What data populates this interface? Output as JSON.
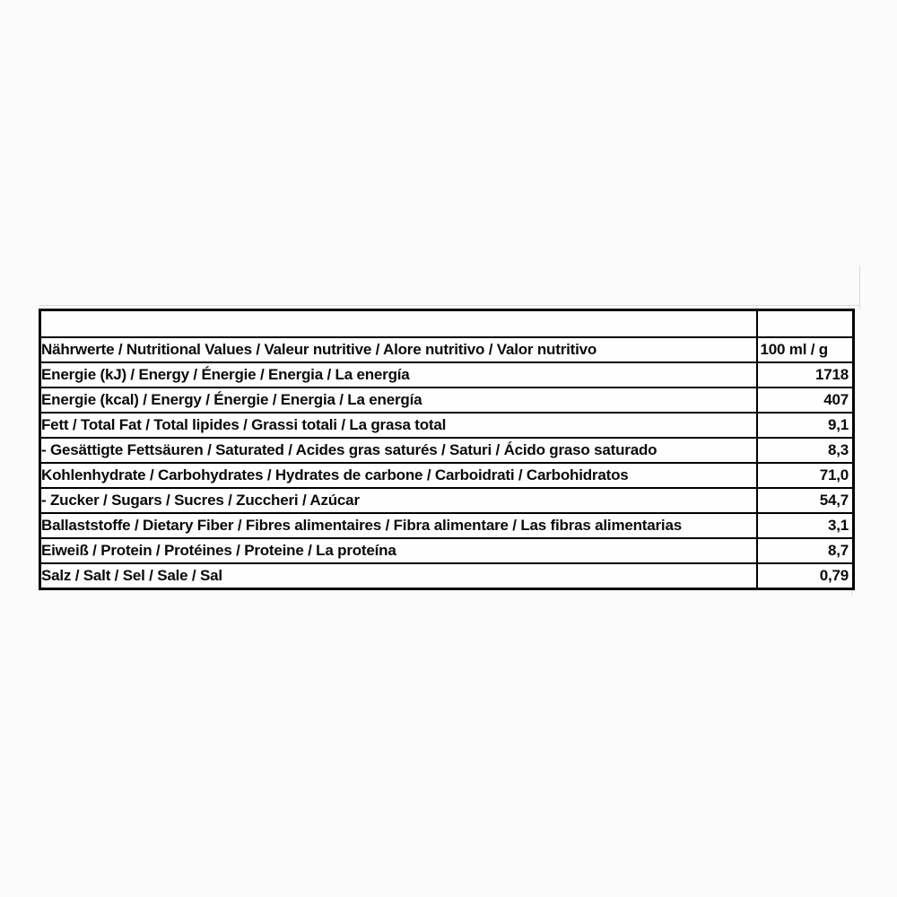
{
  "table": {
    "unit_header": "100 ml / g",
    "rows": [
      {
        "label": "",
        "value": "",
        "value_align": "left"
      },
      {
        "label": "Nährwerte / Nutritional Values / Valeur nutritive / Alore nutritivo / Valor nutritivo",
        "value": "100 ml / g",
        "value_align": "left"
      },
      {
        "label": "Energie (kJ) / Energy / Énergie / Energia / La energía",
        "value": "1718",
        "value_align": "right"
      },
      {
        "label": "Energie (kcal) / Energy / Énergie / Energia / La energía",
        "value": "407",
        "value_align": "right"
      },
      {
        "label": "Fett / Total Fat / Total lipides / Grassi totali / La grasa total",
        "value": "9,1",
        "value_align": "right"
      },
      {
        "label": "- Gesättigte Fettsäuren / Saturated / Acides gras saturés / Saturi / Ácido graso saturado",
        "value": "8,3",
        "value_align": "right"
      },
      {
        "label": "Kohlenhydrate / Carbohydrates / Hydrates de carbone / Carboidrati / Carbohidratos",
        "value": "71,0",
        "value_align": "right"
      },
      {
        "label": "- Zucker / Sugars / Sucres / Zuccheri / Azúcar",
        "value": "54,7",
        "value_align": "right"
      },
      {
        "label": "Ballaststoffe / Dietary Fiber / Fibres alimentaires / Fibra alimentare / Las fibras alimentarias",
        "value": "3,1",
        "value_align": "right"
      },
      {
        "label": "Eiweiß / Protein / Protéines / Proteine / La proteína",
        "value": "8,7",
        "value_align": "right"
      },
      {
        "label": "Salz / Salt / Sel / Sale / Sal",
        "value": "0,79",
        "value_align": "right"
      }
    ]
  },
  "colors": {
    "page_background": "#fafbfa",
    "cell_background": "#fefefe",
    "border": "#000000",
    "ghost_gridline": "#dadddb"
  },
  "chart_data": {
    "type": "table",
    "title": "Nährwerte / Nutritional Values / Valeur nutritive / Alore nutritivo / Valor nutritivo",
    "columns": [
      "Nährwerte / Nutritional Values / Valeur nutritive / Alore nutritivo / Valor nutritivo",
      "100 ml / g"
    ],
    "rows": [
      [
        "Energie (kJ) / Energy / Énergie / Energia / La energía",
        "1718"
      ],
      [
        "Energie (kcal) / Energy / Énergie / Energia / La energía",
        "407"
      ],
      [
        "Fett / Total Fat / Total lipides / Grassi totali / La grasa total",
        "9,1"
      ],
      [
        "- Gesättigte Fettsäuren / Saturated / Acides gras saturés / Saturi / Ácido graso saturado",
        "8,3"
      ],
      [
        "Kohlenhydrate / Carbohydrates / Hydrates de carbone / Carboidrati / Carbohidratos",
        "71,0"
      ],
      [
        "- Zucker / Sugars / Sucres / Zuccheri / Azúcar",
        "54,7"
      ],
      [
        "Ballaststoffe / Dietary Fiber / Fibres alimentaires / Fibra alimentare / Las fibras alimentarias",
        "3,1"
      ],
      [
        "Eiweiß / Protein / Protéines / Proteine / La proteína",
        "8,7"
      ],
      [
        "Salz / Salt / Sel / Sale / Sal",
        "0,79"
      ]
    ]
  }
}
